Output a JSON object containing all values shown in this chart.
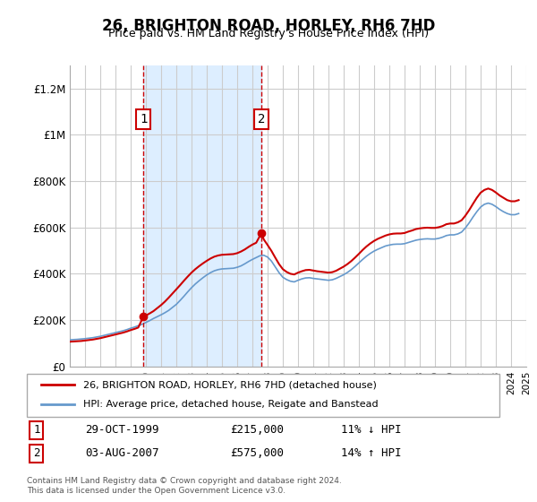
{
  "title": "26, BRIGHTON ROAD, HORLEY, RH6 7HD",
  "subtitle": "Price paid vs. HM Land Registry's House Price Index (HPI)",
  "legend_line1": "26, BRIGHTON ROAD, HORLEY, RH6 7HD (detached house)",
  "legend_line2": "HPI: Average price, detached house, Reigate and Banstead",
  "footnote": "Contains HM Land Registry data © Crown copyright and database right 2024.\nThis data is licensed under the Open Government Licence v3.0.",
  "transaction1_label": "1",
  "transaction1_date": "29-OCT-1999",
  "transaction1_price": "£215,000",
  "transaction1_hpi": "11% ↓ HPI",
  "transaction1_year": 1999.83,
  "transaction1_value": 215000,
  "transaction2_label": "2",
  "transaction2_date": "03-AUG-2007",
  "transaction2_price": "£575,000",
  "transaction2_hpi": "14% ↑ HPI",
  "transaction2_year": 2007.59,
  "transaction2_value": 575000,
  "red_color": "#cc0000",
  "blue_color": "#6699cc",
  "shade_color": "#ddeeff",
  "marker_box_color": "#cc0000",
  "ylim": [
    0,
    1300000
  ],
  "yticks": [
    0,
    200000,
    400000,
    600000,
    800000,
    1000000,
    1200000
  ],
  "ytick_labels": [
    "£0",
    "£200K",
    "£400K",
    "£600K",
    "£800K",
    "£1M",
    "£1.2M"
  ],
  "hpi_years": [
    1995.0,
    1995.25,
    1995.5,
    1995.75,
    1996.0,
    1996.25,
    1996.5,
    1996.75,
    1997.0,
    1997.25,
    1997.5,
    1997.75,
    1998.0,
    1998.25,
    1998.5,
    1998.75,
    1999.0,
    1999.25,
    1999.5,
    1999.75,
    2000.0,
    2000.25,
    2000.5,
    2000.75,
    2001.0,
    2001.25,
    2001.5,
    2001.75,
    2002.0,
    2002.25,
    2002.5,
    2002.75,
    2003.0,
    2003.25,
    2003.5,
    2003.75,
    2004.0,
    2004.25,
    2004.5,
    2004.75,
    2005.0,
    2005.25,
    2005.5,
    2005.75,
    2006.0,
    2006.25,
    2006.5,
    2006.75,
    2007.0,
    2007.25,
    2007.5,
    2007.75,
    2008.0,
    2008.25,
    2008.5,
    2008.75,
    2009.0,
    2009.25,
    2009.5,
    2009.75,
    2010.0,
    2010.25,
    2010.5,
    2010.75,
    2011.0,
    2011.25,
    2011.5,
    2011.75,
    2012.0,
    2012.25,
    2012.5,
    2012.75,
    2013.0,
    2013.25,
    2013.5,
    2013.75,
    2014.0,
    2014.25,
    2014.5,
    2014.75,
    2015.0,
    2015.25,
    2015.5,
    2015.75,
    2016.0,
    2016.25,
    2016.5,
    2016.75,
    2017.0,
    2017.25,
    2017.5,
    2017.75,
    2018.0,
    2018.25,
    2018.5,
    2018.75,
    2019.0,
    2019.25,
    2019.5,
    2019.75,
    2020.0,
    2020.25,
    2020.5,
    2020.75,
    2021.0,
    2021.25,
    2021.5,
    2021.75,
    2022.0,
    2022.25,
    2022.5,
    2022.75,
    2023.0,
    2023.25,
    2023.5,
    2023.75,
    2024.0,
    2024.25,
    2024.5
  ],
  "hpi_values": [
    115000,
    116000,
    117000,
    118500,
    120000,
    122000,
    124000,
    127000,
    130000,
    134000,
    138000,
    142000,
    146000,
    150000,
    154000,
    159000,
    165000,
    170000,
    176000,
    182000,
    190000,
    198000,
    207000,
    215000,
    223000,
    232000,
    242000,
    255000,
    268000,
    285000,
    303000,
    322000,
    340000,
    356000,
    370000,
    383000,
    395000,
    405000,
    413000,
    418000,
    421000,
    422000,
    423000,
    424000,
    428000,
    434000,
    443000,
    453000,
    462000,
    470000,
    478000,
    480000,
    472000,
    455000,
    430000,
    405000,
    385000,
    375000,
    368000,
    365000,
    372000,
    378000,
    382000,
    383000,
    380000,
    378000,
    376000,
    374000,
    372000,
    374000,
    380000,
    388000,
    396000,
    406000,
    418000,
    432000,
    447000,
    462000,
    476000,
    488000,
    498000,
    506000,
    513000,
    520000,
    524000,
    527000,
    528000,
    528000,
    530000,
    535000,
    540000,
    545000,
    548000,
    550000,
    551000,
    550000,
    550000,
    553000,
    558000,
    565000,
    568000,
    568000,
    572000,
    580000,
    598000,
    620000,
    645000,
    668000,
    688000,
    700000,
    705000,
    700000,
    690000,
    678000,
    668000,
    660000,
    655000,
    655000,
    660000
  ],
  "red_years": [
    1995.0,
    1995.25,
    1995.5,
    1995.75,
    1996.0,
    1996.25,
    1996.5,
    1996.75,
    1997.0,
    1997.25,
    1997.5,
    1997.75,
    1998.0,
    1998.25,
    1998.5,
    1998.75,
    1999.0,
    1999.25,
    1999.5,
    1999.83,
    2000.0,
    2000.25,
    2000.5,
    2000.75,
    2001.0,
    2001.25,
    2001.5,
    2001.75,
    2002.0,
    2002.25,
    2002.5,
    2002.75,
    2003.0,
    2003.25,
    2003.5,
    2003.75,
    2004.0,
    2004.25,
    2004.5,
    2004.75,
    2005.0,
    2005.25,
    2005.5,
    2005.75,
    2006.0,
    2006.25,
    2006.5,
    2006.75,
    2007.0,
    2007.25,
    2007.59,
    2007.75,
    2008.0,
    2008.25,
    2008.5,
    2008.75,
    2009.0,
    2009.25,
    2009.5,
    2009.75,
    2010.0,
    2010.25,
    2010.5,
    2010.75,
    2011.0,
    2011.25,
    2011.5,
    2011.75,
    2012.0,
    2012.25,
    2012.5,
    2012.75,
    2013.0,
    2013.25,
    2013.5,
    2013.75,
    2014.0,
    2014.25,
    2014.5,
    2014.75,
    2015.0,
    2015.25,
    2015.5,
    2015.75,
    2016.0,
    2016.25,
    2016.5,
    2016.75,
    2017.0,
    2017.25,
    2017.5,
    2017.75,
    2018.0,
    2018.25,
    2018.5,
    2018.75,
    2019.0,
    2019.25,
    2019.5,
    2019.75,
    2020.0,
    2020.25,
    2020.5,
    2020.75,
    2021.0,
    2021.25,
    2021.5,
    2021.75,
    2022.0,
    2022.25,
    2022.5,
    2022.75,
    2023.0,
    2023.25,
    2023.5,
    2023.75,
    2024.0,
    2024.25,
    2024.5
  ],
  "red_values": [
    107000,
    108000,
    109000,
    110000,
    112000,
    114000,
    116000,
    119000,
    122000,
    126000,
    130000,
    134000,
    138000,
    142000,
    146000,
    151000,
    157000,
    162000,
    168000,
    215000,
    220000,
    229000,
    239000,
    252000,
    265000,
    280000,
    297000,
    315000,
    333000,
    351000,
    370000,
    388000,
    405000,
    420000,
    433000,
    445000,
    456000,
    466000,
    474000,
    479000,
    482000,
    483000,
    484000,
    485000,
    489000,
    496000,
    505000,
    516000,
    526000,
    534000,
    575000,
    548000,
    524000,
    499000,
    470000,
    442000,
    420000,
    408000,
    400000,
    397000,
    405000,
    411000,
    416000,
    417000,
    414000,
    411000,
    409000,
    407000,
    405000,
    407000,
    413000,
    422000,
    431000,
    442000,
    455000,
    470000,
    486000,
    503000,
    518000,
    531000,
    542000,
    551000,
    558000,
    565000,
    570000,
    573000,
    574000,
    574000,
    576000,
    582000,
    587000,
    593000,
    596000,
    598000,
    599000,
    598000,
    598000,
    601000,
    606000,
    614000,
    617000,
    617000,
    622000,
    631000,
    651000,
    675000,
    702000,
    728000,
    750000,
    762000,
    768000,
    762000,
    751000,
    738000,
    728000,
    718000,
    713000,
    713000,
    718000
  ],
  "xmin": 1995.0,
  "xmax": 2025.0
}
